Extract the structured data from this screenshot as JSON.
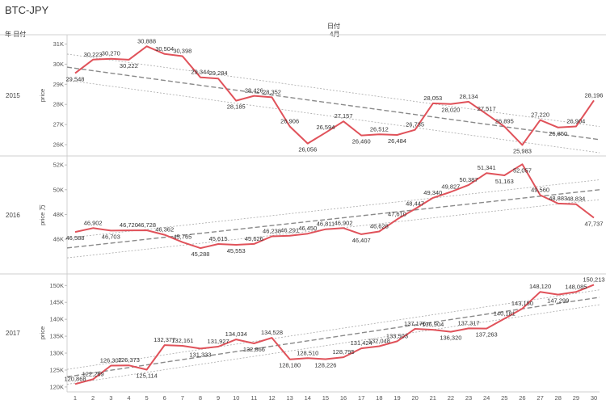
{
  "title": "BTC-JPY",
  "header": {
    "row_label": "年 日付",
    "col_field": "日付",
    "col_value": "4月"
  },
  "chart_data": {
    "type": "line",
    "x": [
      1,
      2,
      3,
      4,
      5,
      6,
      7,
      8,
      9,
      10,
      11,
      12,
      13,
      14,
      15,
      16,
      17,
      18,
      19,
      20,
      21,
      22,
      23,
      24,
      25,
      26,
      27,
      28,
      29,
      30
    ],
    "color": "#e0525a",
    "panels": [
      {
        "year": "2015",
        "ylabel": "price",
        "ytick_values": [
          26000,
          27000,
          28000,
          29000,
          30000,
          31000
        ],
        "ytick_labels": [
          "26K",
          "27K",
          "28K",
          "29K",
          "30K",
          "31K"
        ],
        "ylim": [
          25800,
          31300
        ],
        "values": [
          29548,
          30223,
          30270,
          30222,
          30888,
          30504,
          30398,
          29344,
          29284,
          28185,
          28426,
          28352,
          26906,
          26056,
          26594,
          27157,
          26460,
          26512,
          26484,
          26735,
          28053,
          28020,
          28134,
          27517,
          26895,
          25983,
          27220,
          26850,
          26904,
          28196
        ],
        "labels": [
          "29,548",
          "30,223",
          "30,270",
          "30,222",
          "30,888",
          "30,504",
          "30,398",
          "29,344",
          "29,284",
          "28,185",
          "28,426",
          "28,352",
          "26,906",
          "26,056",
          "26,594",
          "27,157",
          "26,460",
          "26,512",
          "26,484",
          "26,735",
          "28,053",
          "28,020",
          "28,134",
          "27,517",
          "26,895",
          "25,983",
          "27,220",
          "26,850",
          "26,904",
          "28,196"
        ],
        "trend": {
          "start": 29850,
          "end": 26250,
          "band": 650
        }
      },
      {
        "year": "2016",
        "ylabel": "price 万",
        "ytick_values": [
          46000,
          48000,
          50000,
          52000
        ],
        "ytick_labels": [
          "46K",
          "48K",
          "50K",
          "52K"
        ],
        "ylim": [
          44900,
          52400
        ],
        "values": [
          46588,
          46902,
          46703,
          46720,
          46728,
          46362,
          45765,
          45288,
          45615,
          45553,
          45626,
          46238,
          46291,
          46450,
          46811,
          46902,
          46407,
          46628,
          47610,
          48447,
          49340,
          49827,
          50387,
          51341,
          51163,
          52057,
          49560,
          48883,
          48834,
          47737
        ],
        "labels": [
          "46,588",
          "46,902",
          "46,703",
          "46,720",
          "46,728",
          "46,362",
          "45,765",
          "45,288",
          "45,615",
          "45,553",
          "45,626",
          "46,238",
          "46,291",
          "46,450",
          "46,811",
          "46,902",
          "46,407",
          "46,628",
          "47,610",
          "48,447",
          "49,340",
          "49,827",
          "50,387",
          "51,341",
          "51,163",
          "52,057",
          "49,560",
          "48,883",
          "48,834",
          "47,737"
        ],
        "trend": {
          "start": 45300,
          "end": 50000,
          "band": 800
        }
      },
      {
        "year": "2017",
        "ylabel": "price",
        "ytick_values": [
          120000,
          125000,
          130000,
          135000,
          140000,
          145000,
          150000
        ],
        "ytick_labels": [
          "120K",
          "125K",
          "130K",
          "135K",
          "140K",
          "145K",
          "150K"
        ],
        "ylim": [
          119500,
          151500
        ],
        "values": [
          120868,
          122269,
          126307,
          126373,
          125114,
          132377,
          132161,
          131333,
          131927,
          134034,
          132866,
          134528,
          128180,
          128510,
          128226,
          128795,
          131424,
          132048,
          133503,
          137176,
          136904,
          136320,
          137317,
          137263,
          140181,
          143150,
          148120,
          147299,
          148085,
          150213
        ],
        "labels": [
          "120,868",
          "122,269",
          "126,307",
          "126,373",
          "125,114",
          "132,377",
          "132,161",
          "131,333",
          "131,927",
          "134,034",
          "132,866",
          "134,528",
          "128,180",
          "128,510",
          "128,226",
          "128,795",
          "131,424",
          "132,048",
          "133,503",
          "137,176",
          "136,904",
          "136,320",
          "137,317",
          "137,263",
          "140,181",
          "143,150",
          "148,120",
          "147,299",
          "148,085",
          "150,213"
        ],
        "trend": {
          "start": 123000,
          "end": 146500,
          "band": 2200
        }
      }
    ]
  }
}
